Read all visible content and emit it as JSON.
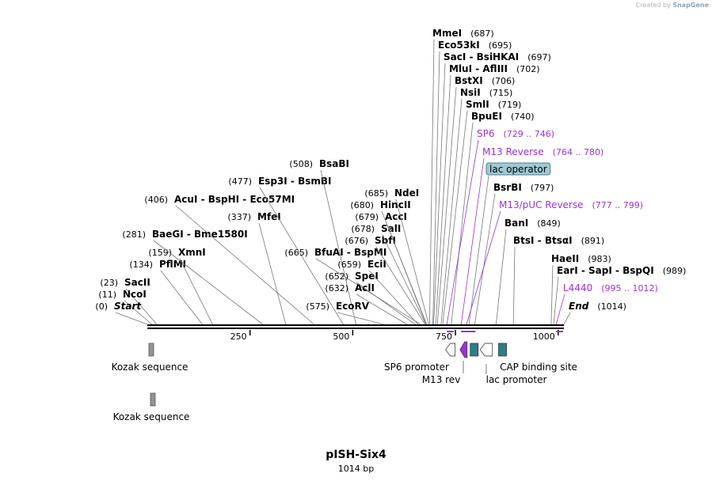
{
  "credit": {
    "created_by": "Created by",
    "brand": "SnapGene"
  },
  "plasmid": {
    "name": "pISH-Six4",
    "length_label": "1014 bp",
    "length": 1014
  },
  "colors": {
    "enzyme": "#000000",
    "primer": "#9b30d9",
    "feature_teal": "#2a7f8a",
    "feature_gray": "#8f949a",
    "lac_operator": "#9fc9d4",
    "line": "#777777"
  },
  "ruler": {
    "ticks": [
      {
        "pos": 250,
        "label": "250"
      },
      {
        "pos": 500,
        "label": "500"
      },
      {
        "pos": 750,
        "label": "750"
      },
      {
        "pos": 1000,
        "label": "1000"
      }
    ]
  },
  "sites": [
    {
      "name": "SacII",
      "pos": 23,
      "label": "(23)",
      "bold": true,
      "kind": "enzyme"
    },
    {
      "name": "NcoI",
      "pos": 11,
      "label": "(11)",
      "bold": true,
      "kind": "enzyme"
    },
    {
      "name": "Start",
      "pos": 0,
      "label": "(0)",
      "bold": true,
      "italic": true,
      "kind": "enzyme"
    },
    {
      "name": "XmnI",
      "pos": 159,
      "label": "(159)",
      "bold": true,
      "kind": "enzyme"
    },
    {
      "name": "PflMI",
      "pos": 134,
      "label": "(134)",
      "bold": true,
      "kind": "enzyme"
    },
    {
      "name": "BaeGI - Bme1580I",
      "pos": 281,
      "label": "(281)",
      "bold": true,
      "kind": "enzyme"
    },
    {
      "name": "MfeI",
      "pos": 337,
      "label": "(337)",
      "bold": true,
      "kind": "enzyme"
    },
    {
      "name": "AcuI - BspHI - Eco57MI",
      "pos": 406,
      "label": "(406)",
      "bold": true,
      "kind": "enzyme"
    },
    {
      "name": "Esp3I - BsmBI",
      "pos": 477,
      "label": "(477)",
      "bold": true,
      "kind": "enzyme"
    },
    {
      "name": "BsaBI",
      "pos": 508,
      "label": "(508)",
      "bold": true,
      "kind": "enzyme"
    },
    {
      "name": "BfuAI - BspMI",
      "pos": 665,
      "label": "(665)",
      "bold": true,
      "kind": "enzyme"
    },
    {
      "name": "EcoRV",
      "pos": 575,
      "label": "(575)",
      "bold": true,
      "kind": "enzyme"
    },
    {
      "name": "AclI",
      "pos": 632,
      "label": "(632)",
      "bold": true,
      "kind": "enzyme"
    },
    {
      "name": "SpeI",
      "pos": 652,
      "label": "(652)",
      "bold": true,
      "kind": "enzyme"
    },
    {
      "name": "EciI",
      "pos": 659,
      "label": "(659)",
      "bold": true,
      "kind": "enzyme"
    },
    {
      "name": "SbfI",
      "pos": 676,
      "label": "(676)",
      "bold": true,
      "kind": "enzyme"
    },
    {
      "name": "SalI",
      "pos": 678,
      "label": "(678)",
      "bold": true,
      "kind": "enzyme"
    },
    {
      "name": "AccI",
      "pos": 679,
      "label": "(679)",
      "bold": true,
      "kind": "enzyme"
    },
    {
      "name": "HincII",
      "pos": 680,
      "label": "(680)",
      "bold": true,
      "kind": "enzyme"
    },
    {
      "name": "NdeI",
      "pos": 685,
      "label": "(685)",
      "bold": true,
      "kind": "enzyme"
    },
    {
      "name": "MmeI",
      "pos": 687,
      "label": "(687)",
      "bold": true,
      "kind": "enzyme"
    },
    {
      "name": "Eco53kI",
      "pos": 695,
      "label": "(695)",
      "bold": true,
      "kind": "enzyme"
    },
    {
      "name": "SacI - BsiHKAI",
      "pos": 697,
      "label": "(697)",
      "bold": true,
      "kind": "enzyme"
    },
    {
      "name": "MluI - AflIII",
      "pos": 702,
      "label": "(702)",
      "bold": true,
      "kind": "enzyme"
    },
    {
      "name": "BstXI",
      "pos": 706,
      "label": "(706)",
      "bold": true,
      "kind": "enzyme"
    },
    {
      "name": "NsiI",
      "pos": 715,
      "label": "(715)",
      "bold": true,
      "kind": "enzyme"
    },
    {
      "name": "SmlI",
      "pos": 719,
      "label": "(719)",
      "bold": true,
      "kind": "enzyme"
    },
    {
      "name": "BpuEI",
      "pos": 740,
      "label": "(740)",
      "bold": true,
      "kind": "enzyme"
    },
    {
      "name": "SP6",
      "pos": 729,
      "label": "(729 .. 746)",
      "bold": false,
      "kind": "primer"
    },
    {
      "name": "M13 Reverse",
      "pos": 764,
      "label": "(764 .. 780)",
      "bold": false,
      "kind": "primer"
    },
    {
      "name": "lac operator",
      "pos": 783,
      "label": "",
      "bold": false,
      "kind": "boxed"
    },
    {
      "name": "BsrBI",
      "pos": 797,
      "label": "(797)",
      "bold": true,
      "kind": "enzyme"
    },
    {
      "name": "M13/pUC Reverse",
      "pos": 777,
      "label": "(777 .. 799)",
      "bold": false,
      "kind": "primer"
    },
    {
      "name": "BanI",
      "pos": 849,
      "label": "(849)",
      "bold": true,
      "kind": "enzyme"
    },
    {
      "name": "BtsI - BtsαI",
      "pos": 891,
      "label": "(891)",
      "bold": true,
      "kind": "enzyme"
    },
    {
      "name": "HaeII",
      "pos": 983,
      "label": "(983)",
      "bold": true,
      "kind": "enzyme"
    },
    {
      "name": "EarI - SapI - BspQI",
      "pos": 989,
      "label": "(989)",
      "bold": true,
      "kind": "enzyme"
    },
    {
      "name": "L4440",
      "pos": 995,
      "label": "(995 .. 1012)",
      "bold": false,
      "kind": "primer"
    },
    {
      "name": "End",
      "pos": 1014,
      "label": "(1014)",
      "bold": true,
      "italic": true,
      "kind": "enzyme"
    }
  ],
  "features": [
    {
      "name": "Kozak sequence",
      "start": 0,
      "end": 10,
      "color": "#8f949a",
      "shape": "box"
    },
    {
      "name": "Kozak sequence",
      "start": 0,
      "end": 10,
      "color": "#8f949a",
      "shape": "box"
    },
    {
      "name": "SP6 promoter",
      "start": 726,
      "end": 744,
      "color": "#ffffff",
      "shape": "promoter-left"
    },
    {
      "name": "M13 rev",
      "start": 761,
      "end": 777,
      "color": "#9b30d9",
      "shape": "arrow-left"
    },
    {
      "name": "lac operator",
      "start": 786,
      "end": 802,
      "color": "#2a7f8a",
      "shape": "box"
    },
    {
      "name": "lac promoter",
      "start": 810,
      "end": 840,
      "color": "#ffffff",
      "shape": "promoter-left"
    },
    {
      "name": "CAP binding site",
      "start": 855,
      "end": 876,
      "color": "#2a7f8a",
      "shape": "box"
    }
  ]
}
